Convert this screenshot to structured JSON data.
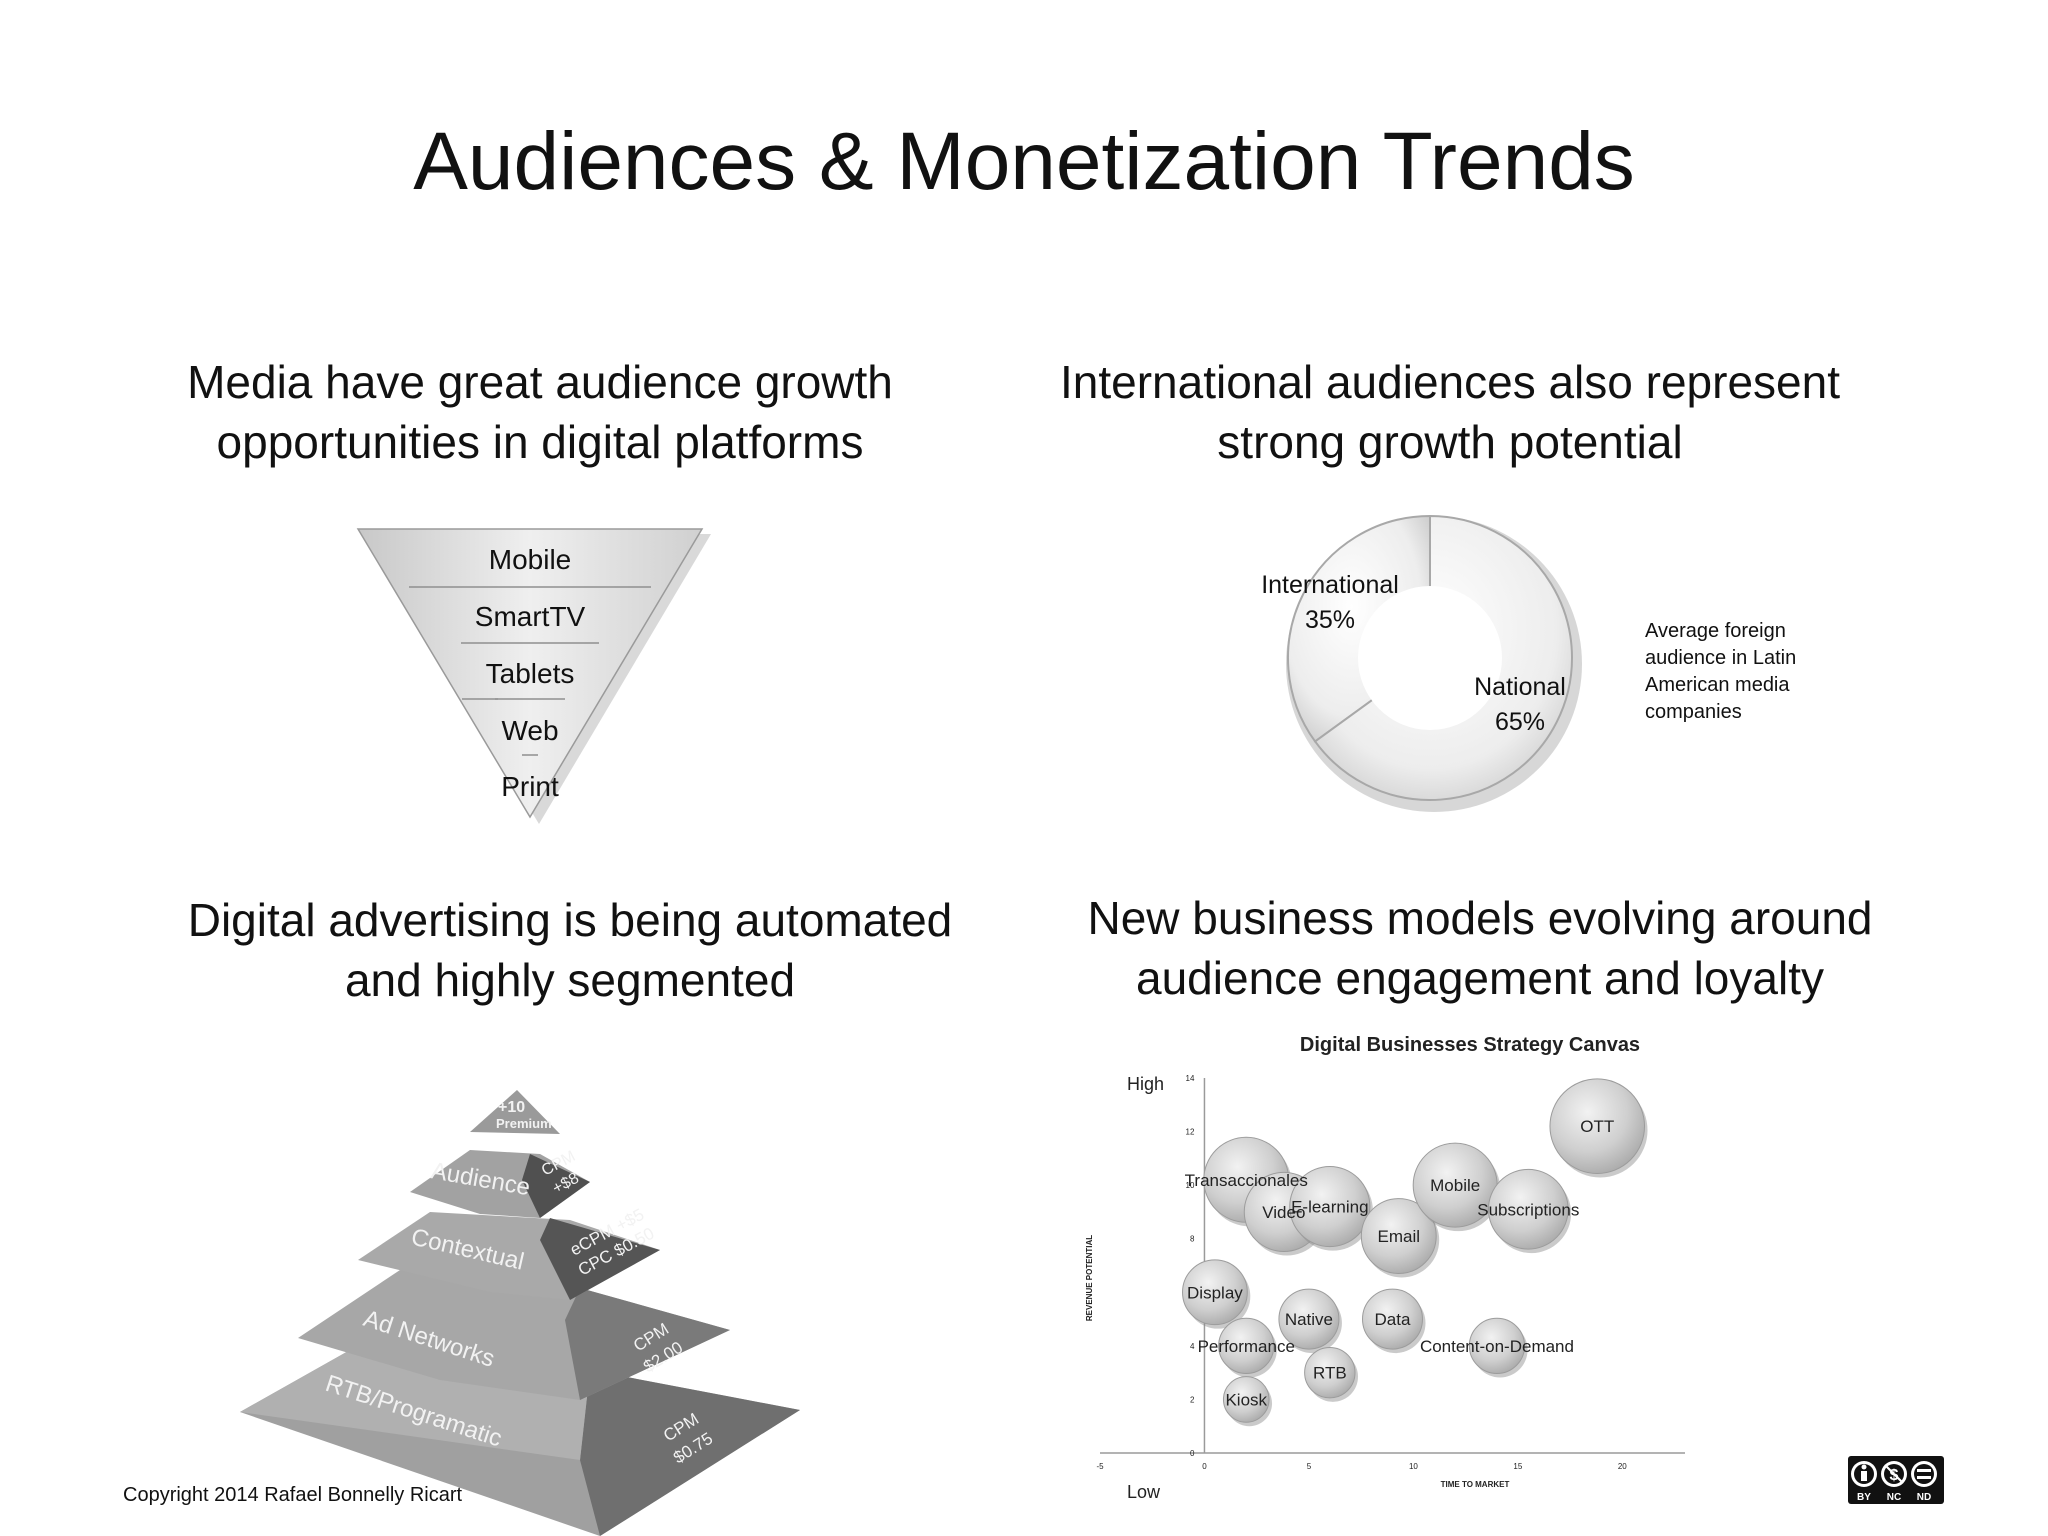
{
  "slide": {
    "title": "Audiences & Monetization Trends"
  },
  "sections": {
    "audience_growth": {
      "heading_line1": "Media have great audience growth",
      "heading_line2": "opportunities in digital platforms",
      "funnel": [
        "Mobile",
        "SmartTV",
        "Tablets",
        "Web",
        "Print"
      ]
    },
    "international": {
      "heading_line1": "International audiences also represent",
      "heading_line2": "strong growth potential",
      "donut": {
        "international_label": "International",
        "international_value": "35%",
        "national_label": "National",
        "national_value": "65%",
        "international_share": 0.35
      },
      "note": [
        "Average foreign",
        "audience in Latin",
        "American media",
        "companies"
      ]
    },
    "advertising": {
      "heading_line1": "Digital advertising is being automated",
      "heading_line2": "and highly segmented",
      "pyramid": {
        "top_line1": "+10",
        "top_line2": "Premium",
        "tiers": [
          {
            "name": "Audience",
            "price_line1": "CPM",
            "price_line2": "+$8"
          },
          {
            "name": "Contextual",
            "price_line1": "eCPM +$5",
            "price_line2": "CPC $0.50"
          },
          {
            "name": "Ad Networks",
            "price_line1": "CPM",
            "price_line2": "$2.00"
          },
          {
            "name": "RTB/Programatic",
            "price_line1": "CPM",
            "price_line2": "$0.75"
          }
        ]
      }
    },
    "business_models": {
      "heading_line1": "New business models evolving around",
      "heading_line2": "audience engagement and loyalty"
    }
  },
  "chart_data": {
    "type": "scatter",
    "title": "Digital Businesses Strategy Canvas",
    "xlabel": "TIME TO MARKET",
    "ylabel": "REVENUE POTENTIAL",
    "y_high_label": "High",
    "y_low_label": "Low",
    "xlim": [
      -5,
      23
    ],
    "ylim": [
      0,
      14
    ],
    "x_ticks": [
      "-5",
      "0",
      "5",
      "10",
      "15",
      "20"
    ],
    "y_ticks": [
      "0",
      "2",
      "4",
      "6",
      "8",
      "10",
      "12",
      "14"
    ],
    "points": [
      {
        "label": "Transaccionales",
        "x": 2,
        "y": 10.2
      },
      {
        "label": "Video",
        "x": 3.8,
        "y": 9
      },
      {
        "label": "E-learning",
        "x": 6,
        "y": 9.2
      },
      {
        "label": "Email",
        "x": 9.3,
        "y": 8.1
      },
      {
        "label": "Mobile",
        "x": 12,
        "y": 10
      },
      {
        "label": "Subscriptions",
        "x": 15.5,
        "y": 9.1
      },
      {
        "label": "OTT",
        "x": 18.8,
        "y": 12.2
      },
      {
        "label": "Display",
        "x": 0.5,
        "y": 6
      },
      {
        "label": "Native",
        "x": 5,
        "y": 5
      },
      {
        "label": "Data",
        "x": 9,
        "y": 5
      },
      {
        "label": "Performance",
        "x": 2,
        "y": 4
      },
      {
        "label": "RTB",
        "x": 6,
        "y": 3
      },
      {
        "label": "Content-on-Demand",
        "x": 14,
        "y": 4
      },
      {
        "label": "Kiosk",
        "x": 2,
        "y": 2
      }
    ]
  },
  "footer": {
    "copyright": "Copyright 2014 Rafael Bonnelly Ricart",
    "license": [
      "BY",
      "NC",
      "ND"
    ]
  }
}
